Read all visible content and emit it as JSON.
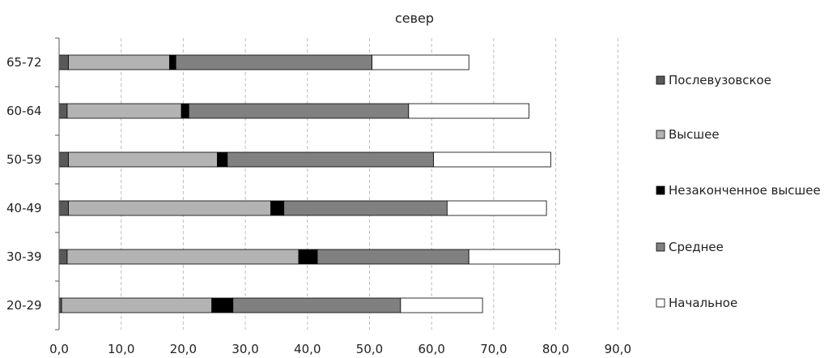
{
  "chart_data": {
    "type": "bar",
    "orientation": "horizontal",
    "stacked": true,
    "title": "север",
    "categories": [
      "20-29",
      "30-39",
      "40-49",
      "50-59",
      "60-64",
      "65-72"
    ],
    "xlim": [
      0,
      90
    ],
    "xticks": [
      "0,0",
      "10,0",
      "20,0",
      "30,0",
      "40,0",
      "50,0",
      "60,0",
      "70,0",
      "80,0",
      "90,0"
    ],
    "grid": "vertical-dashed",
    "legend_position": "right",
    "series": [
      {
        "name": "Послевузовское",
        "color": "#595959",
        "values": [
          0.4,
          1.3,
          1.5,
          1.5,
          1.3,
          1.5
        ]
      },
      {
        "name": "Высшее",
        "color": "#b3b3b3",
        "values": [
          24.2,
          37.3,
          32.6,
          24.0,
          18.4,
          16.3
        ]
      },
      {
        "name": "Незаконченное высшее",
        "color": "#000000",
        "values": [
          3.4,
          3.0,
          2.1,
          1.6,
          1.2,
          1.0
        ]
      },
      {
        "name": "Среднее",
        "color": "#808080",
        "values": [
          27.0,
          24.4,
          26.3,
          33.2,
          35.4,
          31.6
        ]
      },
      {
        "name": "Начальное",
        "color": "#ffffff",
        "values": [
          13.2,
          14.6,
          16.0,
          18.9,
          19.4,
          15.6
        ]
      }
    ],
    "legend_order": [
      "Послевузовское",
      "Высшее",
      "Незаконченное высшее",
      "Среднее",
      "Начальное"
    ]
  }
}
